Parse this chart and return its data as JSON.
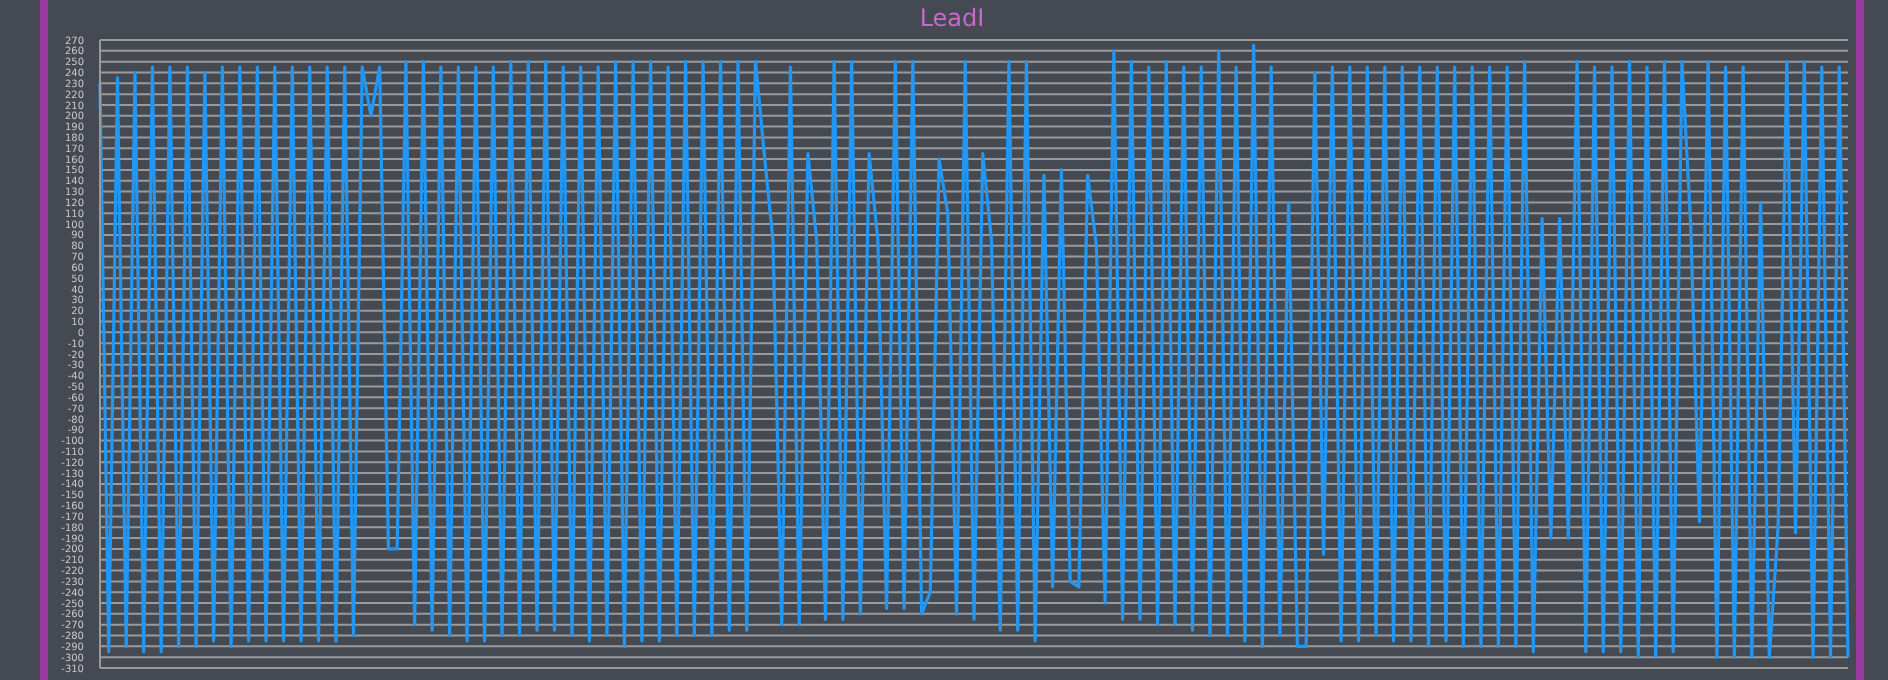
{
  "chart_data": {
    "type": "line",
    "title": "LeadI",
    "tick_labels": "y",
    "grid": "y",
    "marker": "none",
    "line_style": "solid",
    "ylim": [
      -310,
      270
    ],
    "yticks": [
      270,
      260,
      250,
      240,
      230,
      220,
      210,
      200,
      190,
      180,
      170,
      160,
      150,
      140,
      130,
      120,
      110,
      100,
      90,
      80,
      70,
      60,
      50,
      40,
      30,
      20,
      10,
      0,
      -10,
      -20,
      -30,
      -40,
      -50,
      -60,
      -70,
      -80,
      -90,
      -100,
      -110,
      -120,
      -130,
      -140,
      -150,
      -160,
      -170,
      -180,
      -190,
      -200,
      -210,
      -220,
      -230,
      -240,
      -250,
      -260,
      -270,
      -280,
      -290,
      -300,
      -310
    ],
    "categories": [
      null,
      null,
      null,
      null,
      null,
      null,
      null,
      null,
      null,
      null,
      null,
      null,
      null,
      null,
      null,
      null,
      null,
      null,
      null,
      null,
      null,
      null,
      null,
      null,
      null,
      null,
      null,
      null,
      null,
      null,
      null,
      null,
      null,
      null,
      null,
      null,
      null,
      null,
      null,
      null,
      null,
      null,
      null,
      null,
      null,
      null,
      null,
      null,
      null,
      null,
      null,
      null,
      null,
      null,
      null,
      null,
      null,
      null,
      null,
      null,
      null,
      null,
      null,
      null,
      null,
      null,
      null,
      null,
      null,
      null,
      null,
      null,
      null,
      null,
      null,
      null,
      null,
      null,
      null,
      null,
      null,
      null,
      null,
      null,
      null,
      null,
      null,
      null,
      null,
      null,
      null,
      null,
      null,
      null,
      null,
      null,
      null,
      null,
      null,
      null,
      null,
      null,
      null,
      null,
      null,
      null,
      null,
      null,
      null,
      null,
      null,
      null,
      null,
      null,
      null,
      null,
      null,
      null,
      null,
      null,
      null,
      null,
      null,
      null,
      null,
      null,
      null,
      null,
      null,
      null,
      null,
      null,
      null,
      null,
      null,
      null,
      null,
      null,
      null,
      null,
      null,
      null,
      null,
      null,
      null,
      null,
      null,
      null,
      null,
      null,
      null,
      null,
      null,
      null,
      null,
      null,
      null,
      null,
      null,
      null,
      null,
      null,
      null,
      null,
      null,
      null,
      null,
      null,
      null,
      null,
      null,
      null,
      null,
      null,
      null,
      null,
      null,
      null,
      null,
      null,
      null,
      null,
      null,
      null,
      null,
      null,
      null,
      null,
      null,
      null,
      null,
      null,
      null,
      null,
      null,
      null,
      null,
      null,
      null,
      null,
      null
    ],
    "series": [
      {
        "color": "#2196f3",
        "values": [
          230,
          -295,
          235,
          -290,
          240,
          -295,
          245,
          -295,
          245,
          -290,
          245,
          -290,
          240,
          -285,
          245,
          -290,
          245,
          -285,
          245,
          -285,
          245,
          -285,
          245,
          -285,
          245,
          -285,
          245,
          -285,
          245,
          -280,
          245,
          200,
          245,
          -200,
          -200,
          250,
          -270,
          250,
          -275,
          245,
          -280,
          245,
          -285,
          245,
          -285,
          245,
          -280,
          250,
          -280,
          250,
          -275,
          250,
          -275,
          245,
          -280,
          245,
          -285,
          245,
          -280,
          250,
          -290,
          250,
          -285,
          250,
          -285,
          245,
          -280,
          250,
          -280,
          250,
          -280,
          250,
          -275,
          250,
          -275,
          250,
          165,
          85,
          -270,
          245,
          -270,
          165,
          85,
          -265,
          250,
          -265,
          250,
          -260,
          165,
          85,
          -255,
          250,
          -255,
          250,
          -260,
          -240,
          160,
          110,
          -260,
          250,
          -265,
          165,
          85,
          -275,
          250,
          -275,
          250,
          -285,
          145,
          -235,
          150,
          -230,
          -235,
          145,
          80,
          -250,
          260,
          -265,
          250,
          -265,
          245,
          -270,
          250,
          -270,
          245,
          -275,
          245,
          -280,
          260,
          -280,
          245,
          -285,
          265,
          -290,
          245,
          -280,
          120,
          -290,
          -290,
          240,
          -205,
          245,
          -285,
          245,
          -285,
          245,
          -280,
          245,
          -285,
          245,
          -285,
          245,
          -290,
          245,
          -285,
          245,
          -290,
          245,
          -290,
          245,
          -290,
          245,
          -290,
          250,
          -295,
          105,
          -190,
          105,
          -190,
          250,
          -295,
          245,
          -295,
          245,
          -295,
          250,
          -300,
          245,
          -300,
          250,
          -295,
          250,
          100,
          -175,
          250,
          -300,
          245,
          -300,
          245,
          -300,
          120,
          -300,
          -180,
          250,
          -185,
          250,
          -300,
          245,
          -300,
          245,
          -300
        ]
      }
    ]
  }
}
